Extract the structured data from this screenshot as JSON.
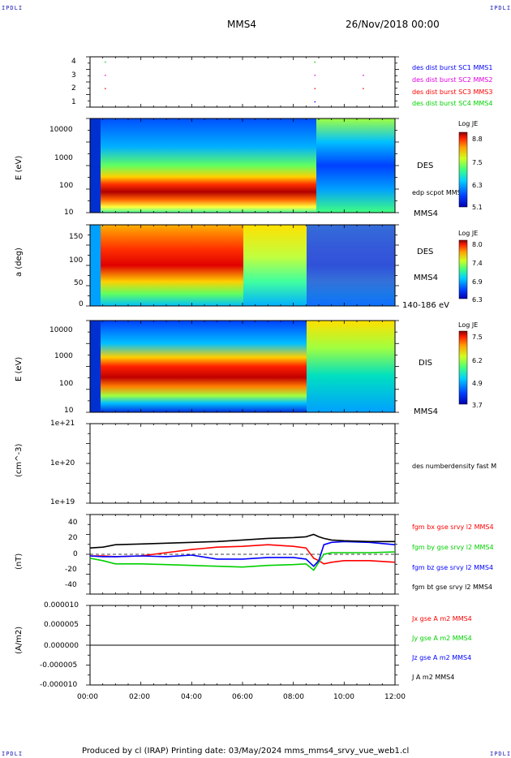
{
  "corners": {
    "tl": "IPDLI",
    "tr": "IPDLI",
    "bl": "IPDLI",
    "br": "IPDLI"
  },
  "header": {
    "spacecraft": "MMS4",
    "date": "26/Nov/2018 00:00"
  },
  "footer": {
    "text": "Produced by cl (IRAP)   Printing date: 03/May/2024   mms_mms4_srvy_vue_web1.cl"
  },
  "colors": {
    "blue": "#0000ff",
    "magenta": "#e000e0",
    "red": "#ff0000",
    "green": "#00d000",
    "black": "#000000"
  },
  "chart_data": [
    {
      "type": "scatter",
      "panel": "burst",
      "yticks": [
        "1",
        "2",
        "3",
        "4"
      ],
      "ylim": [
        0.6,
        4.4
      ],
      "legend": [
        "des dist burst SC1 MMS1",
        "des dist burst SC2 MMS2",
        "des dist burst SC3 MMS3",
        "des dist burst SC4 MMS4"
      ],
      "series": [
        {
          "name": "des dist burst SC1 MMS1",
          "values": [
            [
              8.85,
              1
            ]
          ]
        },
        {
          "name": "des dist burst SC2 MMS2",
          "values": [
            [
              0.6,
              3
            ],
            [
              8.85,
              3
            ],
            [
              10.75,
              3
            ]
          ]
        },
        {
          "name": "des dist burst SC3 MMS3",
          "values": [
            [
              0.6,
              2
            ],
            [
              8.85,
              2
            ],
            [
              10.75,
              2
            ]
          ]
        },
        {
          "name": "des dist burst SC4 MMS4",
          "values": [
            [
              0.6,
              4
            ],
            [
              8.85,
              4
            ]
          ]
        }
      ]
    },
    {
      "type": "heatmap",
      "panel": "des-energy",
      "ylabel": "E (eV)",
      "yticks": [
        "10",
        "100",
        "1000",
        "10000"
      ],
      "right_labels": [
        "DES",
        "edp scpot MMS4",
        "MMS4"
      ],
      "colorbar": {
        "title": "Log JE",
        "ticks": [
          "8.8",
          "7.5",
          "6.3",
          "5.1"
        ]
      }
    },
    {
      "type": "heatmap",
      "panel": "des-pitch",
      "ylabel": "a (deg)",
      "yticks": [
        "0",
        "50",
        "100",
        "150"
      ],
      "right_labels": [
        "DES",
        "MMS4",
        "140-186 eV"
      ],
      "colorbar": {
        "title": "Log JE",
        "ticks": [
          "8.0",
          "7.4",
          "6.9",
          "6.3"
        ]
      }
    },
    {
      "type": "heatmap",
      "panel": "dis-energy",
      "ylabel": "E (eV)",
      "yticks": [
        "10",
        "100",
        "1000",
        "10000"
      ],
      "right_labels": [
        "DIS",
        "MMS4"
      ],
      "colorbar": {
        "title": "Log JE",
        "ticks": [
          "7.5",
          "6.2",
          "4.9",
          "3.7"
        ]
      }
    },
    {
      "type": "line",
      "panel": "density",
      "ylabel": "(cm^-3)",
      "yticks": [
        "1e+19",
        "1e+20",
        "1e+21"
      ],
      "legend": [
        "des numberdensity fast M"
      ],
      "series": []
    },
    {
      "type": "line",
      "panel": "magnetic-field",
      "ylabel": "(nT)",
      "yticks": [
        "-40",
        "-20",
        "0",
        "20",
        "40"
      ],
      "ylim": [
        -50,
        50
      ],
      "legend": [
        "fgm bx gse srvy l2 MMS4",
        "fgm by gse srvy l2 MMS4",
        "fgm bz gse srvy l2 MMS4",
        "fgm bt gse srvy l2 MMS4"
      ],
      "series": [
        {
          "name": "fgm bx gse srvy l2 MMS4",
          "x": [
            0,
            0.5,
            1,
            2,
            3,
            4,
            5,
            6,
            7,
            8,
            8.5,
            8.8,
            9.0,
            9.2,
            9.5,
            10,
            11,
            12
          ],
          "values": [
            -2,
            -2,
            -3,
            -2,
            2,
            6,
            9,
            10,
            12,
            10,
            8,
            -5,
            -8,
            -12,
            -10,
            -8,
            -8,
            -10
          ]
        },
        {
          "name": "fgm by gse srvy l2 MMS4",
          "x": [
            0,
            0.5,
            1,
            2,
            3,
            4,
            5,
            6,
            7,
            8,
            8.5,
            8.8,
            9.0,
            9.2,
            9.5,
            10,
            11,
            12
          ],
          "values": [
            -5,
            -8,
            -12,
            -12,
            -13,
            -14,
            -15,
            -16,
            -14,
            -13,
            -12,
            -20,
            -10,
            0,
            2,
            2,
            2,
            3
          ]
        },
        {
          "name": "fgm bz gse srvy l2 MMS4",
          "x": [
            0,
            0.5,
            1,
            2,
            3,
            4,
            5,
            6,
            7,
            8,
            8.5,
            8.8,
            9.0,
            9.2,
            9.5,
            10,
            11,
            12
          ],
          "values": [
            -2,
            -3,
            -3,
            -2,
            -3,
            -1,
            -6,
            -6,
            -4,
            -4,
            -6,
            -15,
            -8,
            12,
            15,
            16,
            15,
            12
          ]
        },
        {
          "name": "fgm bt gse srvy l2 MMS4",
          "x": [
            0,
            0.5,
            1,
            2,
            3,
            4,
            5,
            6,
            7,
            8,
            8.5,
            8.8,
            9.0,
            9.2,
            9.5,
            10,
            11,
            12
          ],
          "values": [
            8,
            9,
            12,
            13,
            14,
            15,
            16,
            18,
            20,
            21,
            22,
            25,
            22,
            20,
            18,
            17,
            16,
            16
          ]
        }
      ]
    },
    {
      "type": "line",
      "panel": "current-density",
      "ylabel": "(A/m2)",
      "yticks": [
        "-0.000010",
        "-0.000005",
        "0.000000",
        "0.000005",
        "0.000010"
      ],
      "ylim": [
        -1e-05,
        1e-05
      ],
      "xticks": [
        "00:00",
        "02:00",
        "04:00",
        "06:00",
        "08:00",
        "10:00",
        "12:00"
      ],
      "legend": [
        "Jx gse A m2 MMS4",
        "Jy gse A m2 MMS4",
        "Jz gse A m2 MMS4",
        "J A m2 MMS4"
      ],
      "series": [
        {
          "name": "J A m2 MMS4",
          "x": [
            0,
            12
          ],
          "values": [
            0,
            0
          ]
        }
      ]
    }
  ]
}
